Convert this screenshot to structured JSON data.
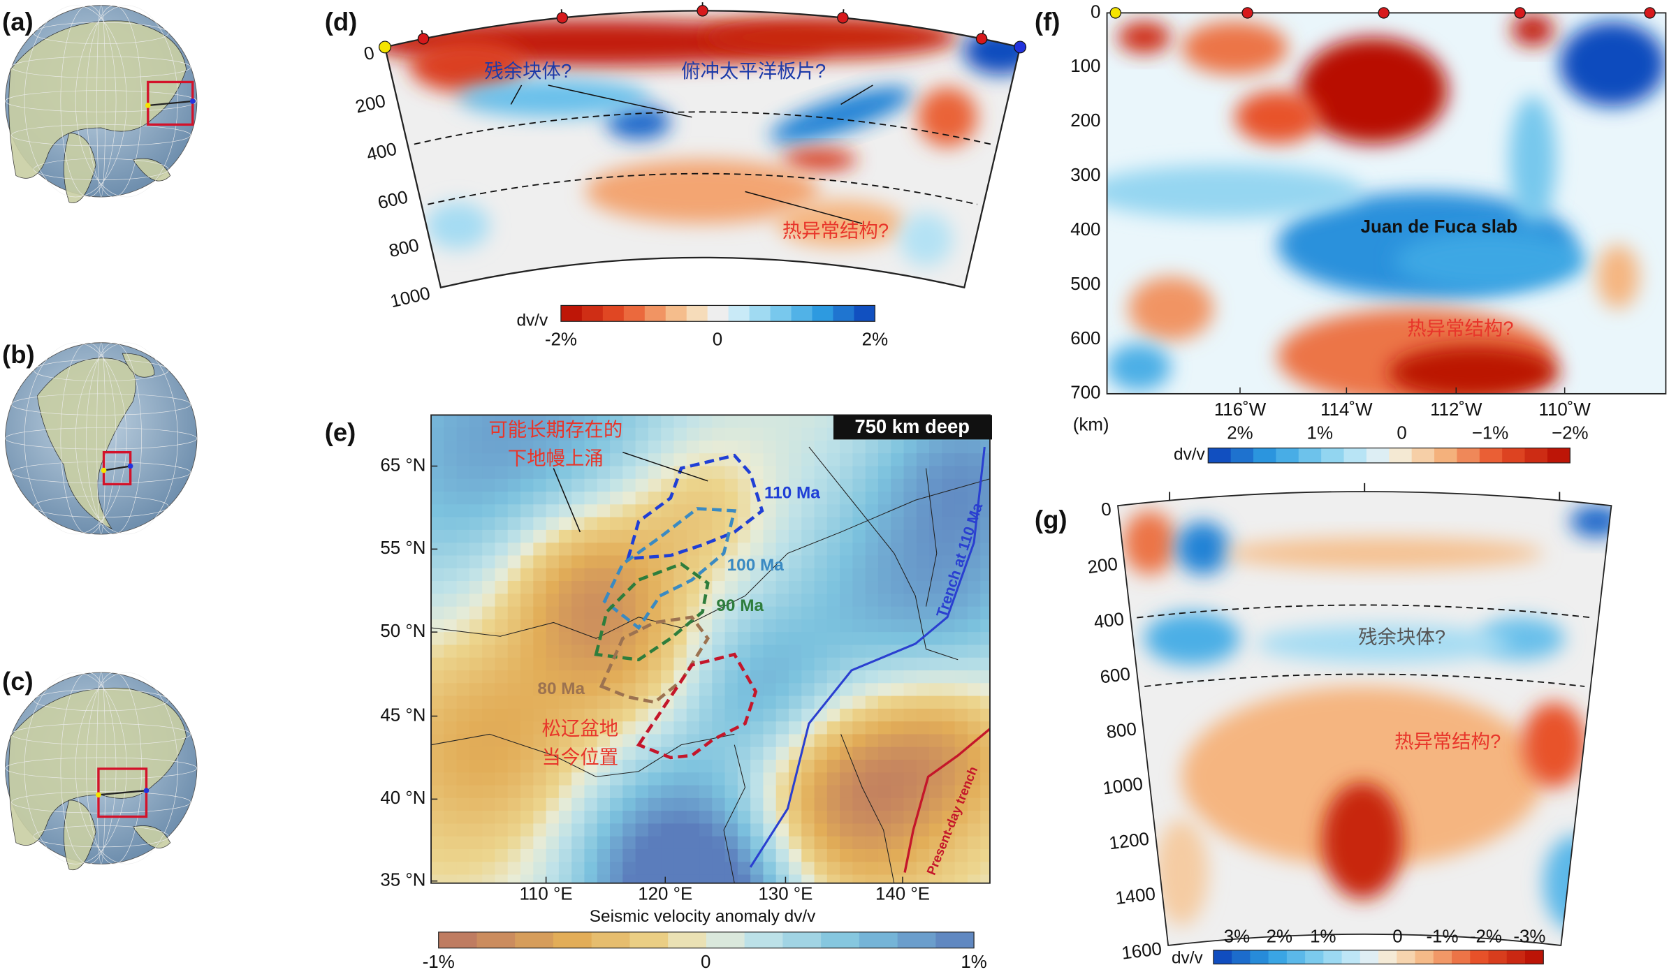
{
  "panels": {
    "a": {
      "label": "(a)"
    },
    "b": {
      "label": "(b)"
    },
    "c": {
      "label": "(c)"
    },
    "d": {
      "label": "(d)",
      "depth_ticks": [
        "0",
        "200",
        "400",
        "600",
        "800",
        "1000"
      ],
      "annotations": [
        "残余块体?",
        "俯冲太平洋板片?",
        "热异常结构?"
      ],
      "colorbar": {
        "title": "dv/v",
        "ticks": [
          "-2%",
          "0",
          "2%"
        ]
      }
    },
    "e": {
      "label": "(e)",
      "badge": "750 km deep",
      "yticks": [
        "65 °N",
        "55 °N",
        "50 °N",
        "45 °N",
        "40 °N",
        "35 °N"
      ],
      "xticks": [
        "110 °E",
        "120 °E",
        "130 °E",
        "140 °E"
      ],
      "upwelling": [
        "可能长期存在的",
        "下地幔上涌"
      ],
      "basin": [
        "松辽盆地",
        "当今位置"
      ],
      "contours": [
        "110 Ma",
        "100 Ma",
        "90 Ma",
        "80 Ma"
      ],
      "trenches": [
        "Trench at 110 Ma",
        "Present-day trench"
      ],
      "colorbar": {
        "title": "Seismic velocity anomaly dv/v",
        "ticks": [
          "-1%",
          "0",
          "1%"
        ]
      }
    },
    "f": {
      "label": "(f)",
      "depth_ticks": [
        "0",
        "100",
        "200",
        "300",
        "400",
        "500",
        "600",
        "700"
      ],
      "unit": "(km)",
      "xticks": [
        "116˚W",
        "114˚W",
        "112˚W",
        "110˚W"
      ],
      "annotations": [
        "Juan de Fuca slab",
        "热异常结构?"
      ],
      "colorbar": {
        "title": "dv/v",
        "ticks": [
          "2%",
          "1%",
          "0",
          "−1%",
          "−2%"
        ]
      }
    },
    "g": {
      "label": "(g)",
      "depth_ticks": [
        "0",
        "200",
        "400",
        "600",
        "800",
        "1000",
        "1200",
        "1400",
        "1600"
      ],
      "annotations": [
        "残余块体?",
        "热异常结构?"
      ],
      "colorbar": {
        "title": "dv/v",
        "ticks": [
          "3%",
          "2%",
          "1%",
          "0",
          "-1%",
          "-2%",
          "-3%"
        ]
      }
    }
  }
}
